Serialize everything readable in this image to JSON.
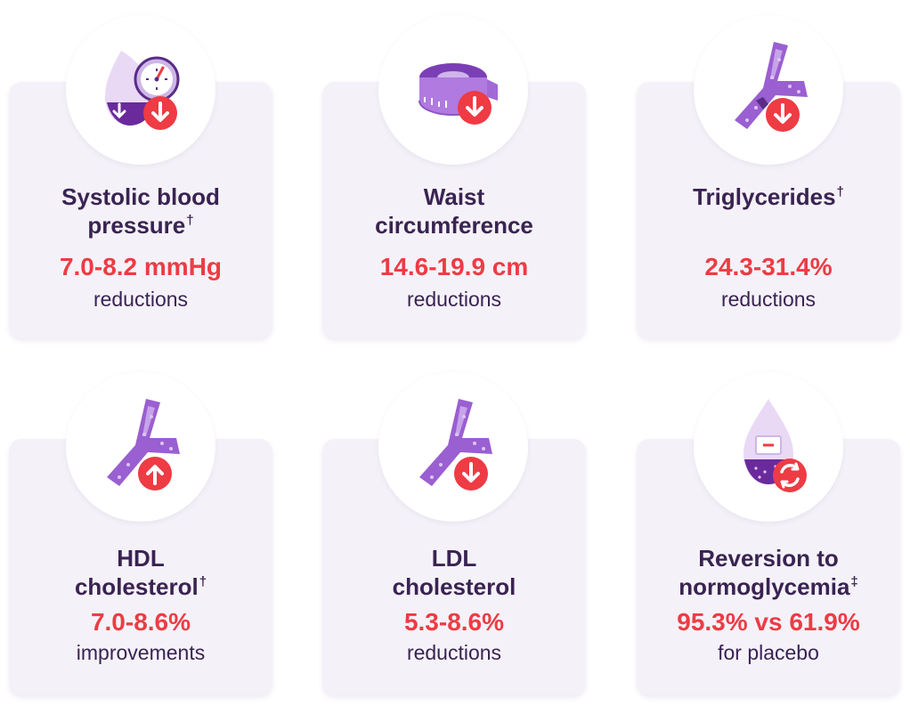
{
  "cards": [
    {
      "title_1": "Systolic blood",
      "title_2": "pressure",
      "mark": "†",
      "value": "7.0-8.2 mmHg",
      "sub": "reductions",
      "icon": "blood-pressure-icon"
    },
    {
      "title_1": "Waist",
      "title_2": "circumference",
      "mark": "",
      "value": "14.6-19.9 cm",
      "sub": "reductions",
      "icon": "tape-measure-icon"
    },
    {
      "title_1": "Triglycerides",
      "title_2": "",
      "mark": "†",
      "value": "24.3-31.4%",
      "sub": "reductions",
      "icon": "artery-icon"
    },
    {
      "title_1": "HDL",
      "title_2": "cholesterol",
      "mark": "†",
      "value": "7.0-8.6%",
      "sub": "improvements",
      "icon": "artery-icon"
    },
    {
      "title_1": "LDL",
      "title_2": "cholesterol",
      "mark": "",
      "value": "5.3-8.6%",
      "sub": "reductions",
      "icon": "artery-icon"
    },
    {
      "title_1": "Reversion to",
      "title_2": "normoglycemia",
      "mark": "‡",
      "value": "95.3% vs 61.9%",
      "sub": "for placebo",
      "icon": "glucose-drop-icon"
    }
  ],
  "colors": {
    "title": "#3a2352",
    "value": "#ee3b44",
    "card_bg": "#f4f2f8",
    "accent_purple": "#8f55c4",
    "arrow_badge": "#ee3b44"
  }
}
